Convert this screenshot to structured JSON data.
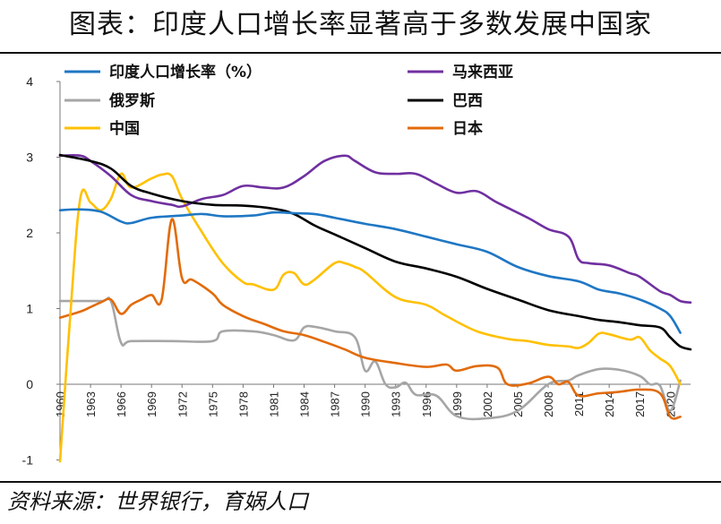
{
  "title": "图表：印度人口增长率显著高于多数发展中国家",
  "source": "资料来源：世界银行，育娲人口",
  "chart_data": {
    "type": "line",
    "ylim": [
      -1,
      4
    ],
    "yticks": [
      -1,
      0,
      1,
      2,
      3,
      4
    ],
    "xlim": [
      1960,
      2022
    ],
    "xticks": [
      1960,
      1963,
      1966,
      1969,
      1972,
      1975,
      1978,
      1981,
      1984,
      1987,
      1990,
      1993,
      1996,
      1999,
      2002,
      2005,
      2008,
      2011,
      2014,
      2017,
      2020
    ],
    "series": [
      {
        "name": "印度人口增长率（%）",
        "color": "#1f77c4",
        "points": [
          [
            1960,
            2.3
          ],
          [
            1962,
            2.31
          ],
          [
            1964,
            2.28
          ],
          [
            1966,
            2.15
          ],
          [
            1967,
            2.13
          ],
          [
            1969,
            2.2
          ],
          [
            1972,
            2.23
          ],
          [
            1974,
            2.25
          ],
          [
            1976,
            2.22
          ],
          [
            1979,
            2.23
          ],
          [
            1981,
            2.27
          ],
          [
            1983,
            2.26
          ],
          [
            1985,
            2.25
          ],
          [
            1987,
            2.2
          ],
          [
            1990,
            2.12
          ],
          [
            1993,
            2.05
          ],
          [
            1996,
            1.95
          ],
          [
            1999,
            1.85
          ],
          [
            2002,
            1.75
          ],
          [
            2005,
            1.55
          ],
          [
            2008,
            1.43
          ],
          [
            2011,
            1.36
          ],
          [
            2013,
            1.25
          ],
          [
            2015,
            1.2
          ],
          [
            2017,
            1.12
          ],
          [
            2019,
            1.0
          ],
          [
            2020,
            0.9
          ],
          [
            2021,
            0.68
          ]
        ]
      },
      {
        "name": "俄罗斯",
        "color": "#a6a6a6",
        "points": [
          [
            1960,
            1.1
          ],
          [
            1964,
            1.1
          ],
          [
            1965,
            1.1
          ],
          [
            1966,
            0.55
          ],
          [
            1967,
            0.57
          ],
          [
            1971,
            0.57
          ],
          [
            1975,
            0.57
          ],
          [
            1976,
            0.7
          ],
          [
            1979,
            0.7
          ],
          [
            1981,
            0.65
          ],
          [
            1983,
            0.58
          ],
          [
            1984,
            0.75
          ],
          [
            1985,
            0.76
          ],
          [
            1987,
            0.7
          ],
          [
            1989,
            0.62
          ],
          [
            1990,
            0.18
          ],
          [
            1991,
            0.3
          ],
          [
            1992,
            0.0
          ],
          [
            1993,
            -0.04
          ],
          [
            1994,
            0.02
          ],
          [
            1995,
            -0.14
          ],
          [
            1997,
            -0.15
          ],
          [
            1999,
            -0.42
          ],
          [
            2002,
            -0.45
          ],
          [
            2005,
            -0.35
          ],
          [
            2008,
            0.0
          ],
          [
            2010,
            0.05
          ],
          [
            2011,
            0.12
          ],
          [
            2013,
            0.2
          ],
          [
            2015,
            0.19
          ],
          [
            2017,
            0.11
          ],
          [
            2018,
            0.0
          ],
          [
            2019,
            -0.02
          ],
          [
            2020,
            -0.35
          ],
          [
            2021,
            0.05
          ]
        ]
      },
      {
        "name": "中国",
        "color": "#ffc000",
        "points": [
          [
            1960,
            -1.02
          ],
          [
            1961,
            0.9
          ],
          [
            1962,
            2.46
          ],
          [
            1963,
            2.4
          ],
          [
            1964,
            2.3
          ],
          [
            1965,
            2.45
          ],
          [
            1966,
            2.78
          ],
          [
            1967,
            2.6
          ],
          [
            1969,
            2.72
          ],
          [
            1970,
            2.77
          ],
          [
            1971,
            2.75
          ],
          [
            1972,
            2.45
          ],
          [
            1974,
            2.0
          ],
          [
            1976,
            1.6
          ],
          [
            1978,
            1.35
          ],
          [
            1979,
            1.32
          ],
          [
            1981,
            1.25
          ],
          [
            1982,
            1.45
          ],
          [
            1983,
            1.47
          ],
          [
            1984,
            1.32
          ],
          [
            1985,
            1.38
          ],
          [
            1987,
            1.6
          ],
          [
            1988,
            1.6
          ],
          [
            1989,
            1.55
          ],
          [
            1990,
            1.48
          ],
          [
            1993,
            1.15
          ],
          [
            1996,
            1.05
          ],
          [
            1998,
            0.9
          ],
          [
            2001,
            0.7
          ],
          [
            2004,
            0.6
          ],
          [
            2006,
            0.57
          ],
          [
            2008,
            0.52
          ],
          [
            2010,
            0.5
          ],
          [
            2011,
            0.48
          ],
          [
            2012,
            0.55
          ],
          [
            2013,
            0.67
          ],
          [
            2014,
            0.66
          ],
          [
            2016,
            0.59
          ],
          [
            2017,
            0.62
          ],
          [
            2018,
            0.45
          ],
          [
            2019,
            0.34
          ],
          [
            2020,
            0.24
          ],
          [
            2021,
            0.0
          ]
        ]
      },
      {
        "name": "马来西亚",
        "color": "#7030a0",
        "points": [
          [
            1960,
            3.02
          ],
          [
            1962,
            3.02
          ],
          [
            1963,
            2.95
          ],
          [
            1965,
            2.75
          ],
          [
            1967,
            2.5
          ],
          [
            1969,
            2.42
          ],
          [
            1971,
            2.37
          ],
          [
            1972,
            2.35
          ],
          [
            1974,
            2.45
          ],
          [
            1976,
            2.5
          ],
          [
            1978,
            2.62
          ],
          [
            1980,
            2.6
          ],
          [
            1982,
            2.6
          ],
          [
            1984,
            2.75
          ],
          [
            1986,
            2.95
          ],
          [
            1988,
            3.02
          ],
          [
            1989,
            2.95
          ],
          [
            1991,
            2.8
          ],
          [
            1993,
            2.78
          ],
          [
            1995,
            2.78
          ],
          [
            1997,
            2.65
          ],
          [
            1999,
            2.53
          ],
          [
            2001,
            2.55
          ],
          [
            2003,
            2.4
          ],
          [
            2006,
            2.2
          ],
          [
            2008,
            2.05
          ],
          [
            2010,
            1.95
          ],
          [
            2011,
            1.65
          ],
          [
            2012,
            1.6
          ],
          [
            2014,
            1.57
          ],
          [
            2016,
            1.47
          ],
          [
            2017,
            1.42
          ],
          [
            2019,
            1.23
          ],
          [
            2020,
            1.18
          ],
          [
            2021,
            1.1
          ],
          [
            2022,
            1.08
          ]
        ]
      },
      {
        "name": "巴西",
        "color": "#000000",
        "points": [
          [
            1960,
            3.03
          ],
          [
            1963,
            2.95
          ],
          [
            1965,
            2.85
          ],
          [
            1967,
            2.62
          ],
          [
            1969,
            2.52
          ],
          [
            1972,
            2.42
          ],
          [
            1975,
            2.37
          ],
          [
            1978,
            2.36
          ],
          [
            1981,
            2.32
          ],
          [
            1983,
            2.25
          ],
          [
            1985,
            2.1
          ],
          [
            1987,
            1.98
          ],
          [
            1990,
            1.8
          ],
          [
            1993,
            1.62
          ],
          [
            1996,
            1.53
          ],
          [
            1999,
            1.42
          ],
          [
            2002,
            1.26
          ],
          [
            2005,
            1.12
          ],
          [
            2008,
            0.98
          ],
          [
            2011,
            0.9
          ],
          [
            2013,
            0.85
          ],
          [
            2015,
            0.82
          ],
          [
            2017,
            0.78
          ],
          [
            2019,
            0.75
          ],
          [
            2020,
            0.62
          ],
          [
            2021,
            0.5
          ],
          [
            2022,
            0.46
          ]
        ]
      },
      {
        "name": "日本",
        "color": "#e26b0a",
        "points": [
          [
            1960,
            0.88
          ],
          [
            1962,
            0.96
          ],
          [
            1963,
            1.02
          ],
          [
            1964,
            1.08
          ],
          [
            1965,
            1.12
          ],
          [
            1966,
            0.93
          ],
          [
            1967,
            1.05
          ],
          [
            1968,
            1.12
          ],
          [
            1969,
            1.18
          ],
          [
            1970,
            1.12
          ],
          [
            1971,
            2.18
          ],
          [
            1972,
            1.4
          ],
          [
            1973,
            1.38
          ],
          [
            1975,
            1.2
          ],
          [
            1976,
            1.05
          ],
          [
            1978,
            0.9
          ],
          [
            1980,
            0.8
          ],
          [
            1982,
            0.7
          ],
          [
            1984,
            0.65
          ],
          [
            1986,
            0.56
          ],
          [
            1988,
            0.46
          ],
          [
            1990,
            0.35
          ],
          [
            1993,
            0.28
          ],
          [
            1996,
            0.23
          ],
          [
            1998,
            0.26
          ],
          [
            1999,
            0.18
          ],
          [
            2001,
            0.24
          ],
          [
            2003,
            0.22
          ],
          [
            2004,
            0.0
          ],
          [
            2006,
            0.01
          ],
          [
            2008,
            0.1
          ],
          [
            2009,
            0.0
          ],
          [
            2010,
            0.03
          ],
          [
            2011,
            -0.15
          ],
          [
            2013,
            -0.12
          ],
          [
            2015,
            -0.1
          ],
          [
            2017,
            -0.07
          ],
          [
            2019,
            -0.12
          ],
          [
            2020,
            -0.43
          ],
          [
            2021,
            -0.43
          ]
        ]
      }
    ]
  }
}
